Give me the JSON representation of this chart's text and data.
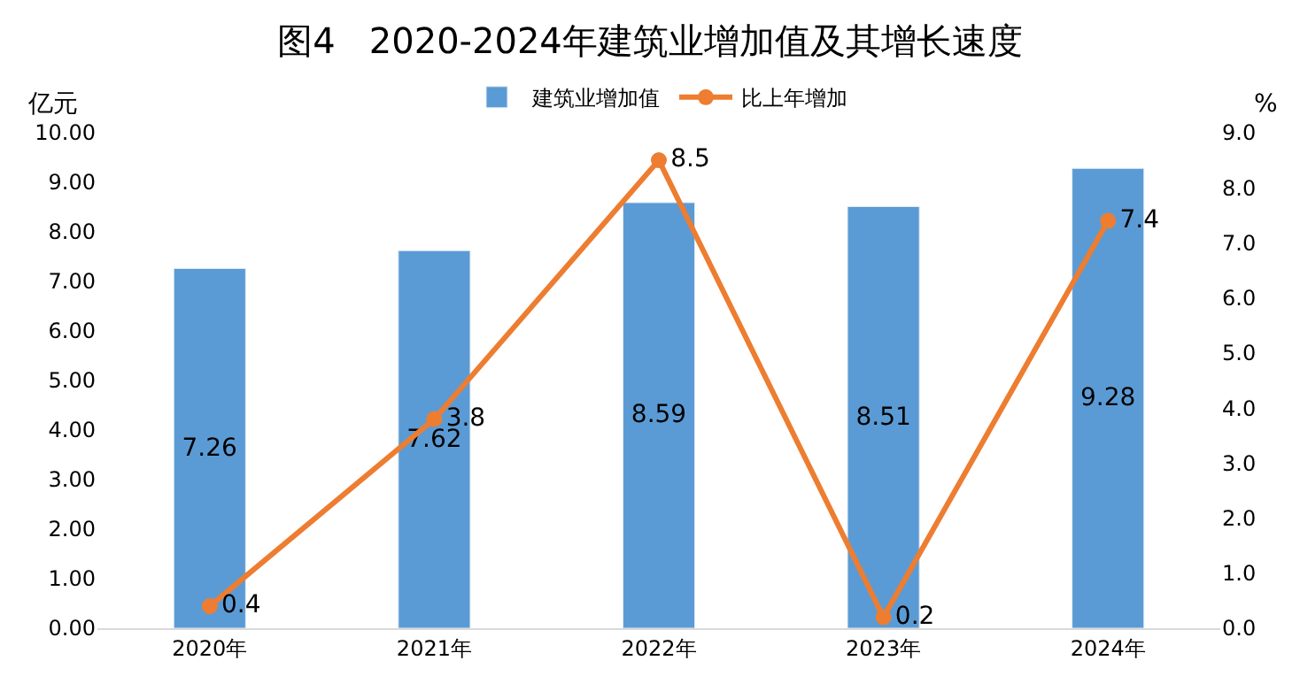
{
  "chart_data": {
    "type": "bar",
    "title": "图4   2020-2024年建筑业增加值及其增长速度",
    "categories": [
      "2020年",
      "2021年",
      "2022年",
      "2023年",
      "2024年"
    ],
    "series": [
      {
        "name": "建筑业增加值",
        "color": "#5b9bd5",
        "values": [
          7.26,
          7.62,
          8.59,
          8.51,
          9.28
        ]
      },
      {
        "name": "比上年增加",
        "type": "line",
        "axis": "y2",
        "color": "#ed7d31",
        "marker": "circle",
        "values": [
          0.4,
          3.8,
          8.5,
          0.2,
          7.4
        ]
      }
    ],
    "ylabel": "亿元",
    "y2label": "%",
    "ylim": [
      0,
      10
    ],
    "yticks": [
      {
        "value": 0,
        "label": "0.00"
      },
      {
        "value": 1,
        "label": "1.00"
      },
      {
        "value": 2,
        "label": "2.00"
      },
      {
        "value": 3,
        "label": "3.00"
      },
      {
        "value": 4,
        "label": "4.00"
      },
      {
        "value": 5,
        "label": "5.00"
      },
      {
        "value": 6,
        "label": "6.00"
      },
      {
        "value": 7,
        "label": "7.00"
      },
      {
        "value": 8,
        "label": "8.00"
      },
      {
        "value": 9,
        "label": "9.00"
      },
      {
        "value": 10,
        "label": "10.00"
      }
    ],
    "y2lim": [
      0,
      9
    ],
    "y2ticks": [
      {
        "value": 0,
        "label": "0.0"
      },
      {
        "value": 1,
        "label": "1.0"
      },
      {
        "value": 2,
        "label": "2.0"
      },
      {
        "value": 3,
        "label": "3.0"
      },
      {
        "value": 4,
        "label": "4.0"
      },
      {
        "value": 5,
        "label": "5.0"
      },
      {
        "value": 6,
        "label": "6.0"
      },
      {
        "value": 7,
        "label": "7.0"
      },
      {
        "value": 8,
        "label": "8.0"
      },
      {
        "value": 9,
        "label": "9.0"
      }
    ],
    "data_labels": true,
    "legend": "top",
    "grid": false
  }
}
